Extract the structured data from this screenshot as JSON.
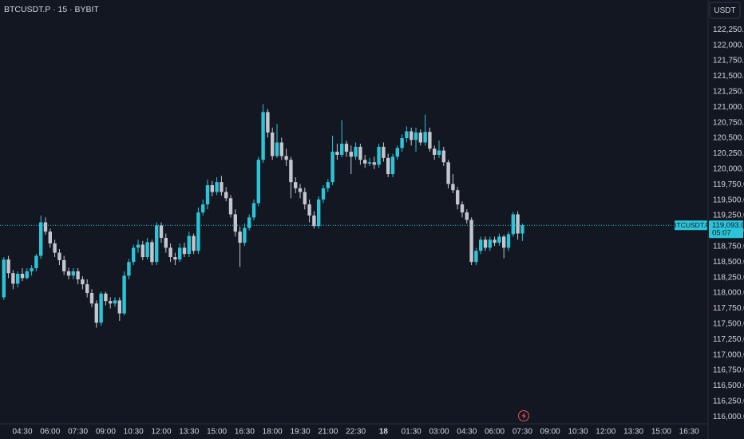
{
  "chart_data": {
    "type": "candlestick",
    "title": "BTCUSDT.P · 15 · BYBIT",
    "currency_button": "USDT",
    "up_color": "#2bc4d8",
    "down_color": "#c3c6ce",
    "x": [
      "03:30",
      "03:45",
      "04:00",
      "04:15",
      "04:30",
      "04:45",
      "05:00",
      "05:15",
      "05:30",
      "05:45",
      "06:00",
      "06:15",
      "06:30",
      "06:45",
      "07:00",
      "07:15",
      "07:30",
      "07:45",
      "08:00",
      "08:15",
      "08:30",
      "08:45",
      "09:00",
      "09:15",
      "09:30",
      "09:45",
      "10:00",
      "10:15",
      "10:30",
      "10:45",
      "11:00",
      "11:15",
      "11:30",
      "11:45",
      "12:00",
      "12:15",
      "12:30",
      "12:45",
      "13:00",
      "13:15",
      "13:30",
      "13:45",
      "14:00",
      "14:15",
      "14:30",
      "14:45",
      "15:00",
      "15:15",
      "15:30",
      "15:45",
      "16:00",
      "16:15",
      "16:30",
      "16:45",
      "17:00",
      "17:15",
      "17:30",
      "17:45",
      "18:00",
      "18:15",
      "18:30",
      "18:45",
      "19:00",
      "19:15",
      "19:30",
      "19:45",
      "20:00",
      "20:15",
      "20:30",
      "20:45",
      "21:00",
      "21:15",
      "21:30",
      "21:45",
      "22:00",
      "22:15",
      "22:30",
      "22:45",
      "23:00",
      "23:15",
      "23:30",
      "23:45",
      "00:00",
      "00:15",
      "00:30",
      "00:45",
      "01:00",
      "01:15",
      "01:30",
      "01:45",
      "02:00",
      "02:15",
      "02:30",
      "02:45",
      "03:00",
      "03:15",
      "03:30",
      "03:45",
      "04:00",
      "04:15",
      "04:30",
      "04:45",
      "05:00",
      "05:15",
      "05:30",
      "05:45",
      "06:00",
      "06:15",
      "06:30",
      "06:45",
      "07:00",
      "07:15",
      "07:30"
    ],
    "open": [
      117930,
      118540,
      118320,
      118150,
      118310,
      118240,
      118350,
      118400,
      118600,
      119140,
      118990,
      118800,
      118650,
      118530,
      118350,
      118280,
      118350,
      118220,
      118140,
      118000,
      117830,
      117520,
      117990,
      117870,
      117830,
      117880,
      117670,
      118280,
      118500,
      118730,
      118780,
      118580,
      118820,
      118500,
      119090,
      118890,
      118730,
      118580,
      118540,
      118730,
      118630,
      118920,
      118680,
      119300,
      119430,
      119740,
      119630,
      119790,
      119630,
      119530,
      119270,
      118990,
      118810,
      119050,
      119220,
      119450,
      120150,
      120920,
      120590,
      120210,
      120430,
      120210,
      120150,
      119790,
      119690,
      119630,
      119430,
      119250,
      119080,
      119510,
      119690,
      119790,
      120280,
      120230,
      120410,
      120280,
      120200,
      120360,
      120150,
      120090,
      120110,
      120070,
      120360,
      120180,
      119920,
      120200,
      120340,
      120500,
      120610,
      120470,
      120590,
      120430,
      120600,
      120330,
      120230,
      120300,
      120110,
      119760,
      119660,
      119430,
      119300,
      119180,
      118500,
      118680,
      118860,
      118730,
      118860,
      118810,
      118910,
      118730,
      118950,
      119270,
      118960
    ],
    "high": [
      118580,
      118600,
      118370,
      118350,
      118400,
      118400,
      118450,
      118630,
      119250,
      119220,
      119040,
      118860,
      118710,
      118600,
      118410,
      118400,
      118400,
      118270,
      118220,
      118060,
      117880,
      118020,
      118020,
      117930,
      117930,
      117930,
      118350,
      118550,
      118780,
      118860,
      118840,
      118890,
      118860,
      119140,
      119140,
      118960,
      118800,
      118650,
      118800,
      118810,
      118990,
      118960,
      119380,
      119510,
      119830,
      119810,
      119870,
      119890,
      119710,
      119580,
      119350,
      119070,
      119120,
      119270,
      119510,
      120200,
      121050,
      120970,
      120670,
      120730,
      120510,
      120330,
      120200,
      119870,
      119760,
      119700,
      119510,
      119320,
      119560,
      119740,
      119840,
      120540,
      120410,
      120790,
      120460,
      120380,
      120430,
      120410,
      120230,
      120180,
      120200,
      120410,
      120430,
      120250,
      120250,
      120380,
      120560,
      120690,
      120670,
      120670,
      120640,
      120880,
      120670,
      120380,
      120460,
      120360,
      120150,
      119920,
      119710,
      119480,
      119350,
      119220,
      118730,
      118910,
      118910,
      118910,
      118910,
      118960,
      118940,
      118990,
      119310,
      119320,
      119120
    ],
    "low": [
      117890,
      118240,
      118060,
      118090,
      118190,
      118220,
      118280,
      118350,
      118550,
      118940,
      118730,
      118580,
      118450,
      118290,
      118220,
      118220,
      118140,
      118060,
      117930,
      117770,
      117440,
      117470,
      117800,
      117750,
      117780,
      117550,
      117640,
      118220,
      118450,
      118650,
      118530,
      118540,
      118450,
      118450,
      118810,
      118650,
      118500,
      118450,
      118500,
      118580,
      118580,
      118630,
      118630,
      119250,
      119350,
      119560,
      119580,
      119570,
      119480,
      119220,
      118910,
      118420,
      118760,
      119010,
      119170,
      119400,
      120100,
      120510,
      120150,
      120180,
      120150,
      120050,
      119530,
      119610,
      119530,
      119350,
      119140,
      119040,
      119040,
      119450,
      119630,
      119740,
      120150,
      120190,
      120200,
      119920,
      120150,
      120070,
      120020,
      120050,
      120000,
      120020,
      120120,
      119870,
      119870,
      120150,
      120280,
      120430,
      120380,
      120280,
      120380,
      120380,
      120280,
      120150,
      120180,
      120050,
      119690,
      119610,
      119350,
      119220,
      119120,
      118450,
      118450,
      118630,
      118680,
      118680,
      118760,
      118760,
      118560,
      118680,
      118910,
      118860,
      118840
    ],
    "close": [
      118540,
      118320,
      118150,
      118310,
      118240,
      118350,
      118400,
      118600,
      119140,
      118990,
      118800,
      118650,
      118530,
      118350,
      118280,
      118350,
      118220,
      118140,
      118000,
      117830,
      117520,
      117990,
      117870,
      117830,
      117880,
      117670,
      118280,
      118500,
      118730,
      118780,
      118580,
      118820,
      118500,
      119090,
      118890,
      118730,
      118580,
      118540,
      118730,
      118630,
      118920,
      118680,
      119300,
      119430,
      119740,
      119630,
      119790,
      119630,
      119530,
      119270,
      118990,
      118810,
      119050,
      119220,
      119450,
      120150,
      120920,
      120590,
      120210,
      120430,
      120210,
      120150,
      119790,
      119690,
      119630,
      119430,
      119250,
      119080,
      119510,
      119690,
      119790,
      120280,
      120230,
      120410,
      120280,
      120200,
      120360,
      120150,
      120090,
      120110,
      120070,
      120360,
      120180,
      119920,
      120200,
      120340,
      120500,
      120610,
      120470,
      120590,
      120430,
      120600,
      120330,
      120230,
      120300,
      120110,
      119760,
      119660,
      119430,
      119300,
      119180,
      118500,
      118680,
      118860,
      118730,
      118860,
      118810,
      118910,
      118730,
      118950,
      119270,
      118960,
      119093
    ],
    "ylim": [
      115900,
      122730
    ],
    "yticks": [
      {
        "value": 116000,
        "label": "116,000.0"
      },
      {
        "value": 116250,
        "label": "116,250.0"
      },
      {
        "value": 116500,
        "label": "116,500.0"
      },
      {
        "value": 116750,
        "label": "116,750.0"
      },
      {
        "value": 117000,
        "label": "117,000.0"
      },
      {
        "value": 117250,
        "label": "117,250.0"
      },
      {
        "value": 117500,
        "label": "117,500.0"
      },
      {
        "value": 117750,
        "label": "117,750.0"
      },
      {
        "value": 118000,
        "label": "118,000.0"
      },
      {
        "value": 118250,
        "label": "118,250.0"
      },
      {
        "value": 118500,
        "label": "118,500.0"
      },
      {
        "value": 118750,
        "label": "118,750.0"
      },
      {
        "value": 119000,
        "label": "119,000.0"
      },
      {
        "value": 119250,
        "label": "119,250.0"
      },
      {
        "value": 119500,
        "label": "119,500.0"
      },
      {
        "value": 119750,
        "label": "119,750.0"
      },
      {
        "value": 120000,
        "label": "120,000.0"
      },
      {
        "value": 120250,
        "label": "120,250.0"
      },
      {
        "value": 120500,
        "label": "120,500.0"
      },
      {
        "value": 120750,
        "label": "120,750.0"
      },
      {
        "value": 121000,
        "label": "121,000.0"
      },
      {
        "value": 121250,
        "label": "121,250.0"
      },
      {
        "value": 121500,
        "label": "121,500.0"
      },
      {
        "value": 121750,
        "label": "121,750.0"
      },
      {
        "value": 122000,
        "label": "122,000.0"
      },
      {
        "value": 122250,
        "label": "122,250.0"
      }
    ],
    "xticks": [
      "04:30",
      "06:00",
      "07:30",
      "09:00",
      "10:30",
      "12:00",
      "13:30",
      "15:00",
      "16:30",
      "18:00",
      "19:30",
      "21:00",
      "22:30",
      "18",
      "01:30",
      "03:00",
      "04:30",
      "06:00",
      "07:30",
      "09:00",
      "10:30",
      "12:00",
      "13:30",
      "15:00",
      "16:30"
    ],
    "last_price": {
      "value": 119093,
      "label": "119,093.0"
    },
    "symbol_tag": "BTCUSDT.P",
    "countdown": "05:07"
  }
}
